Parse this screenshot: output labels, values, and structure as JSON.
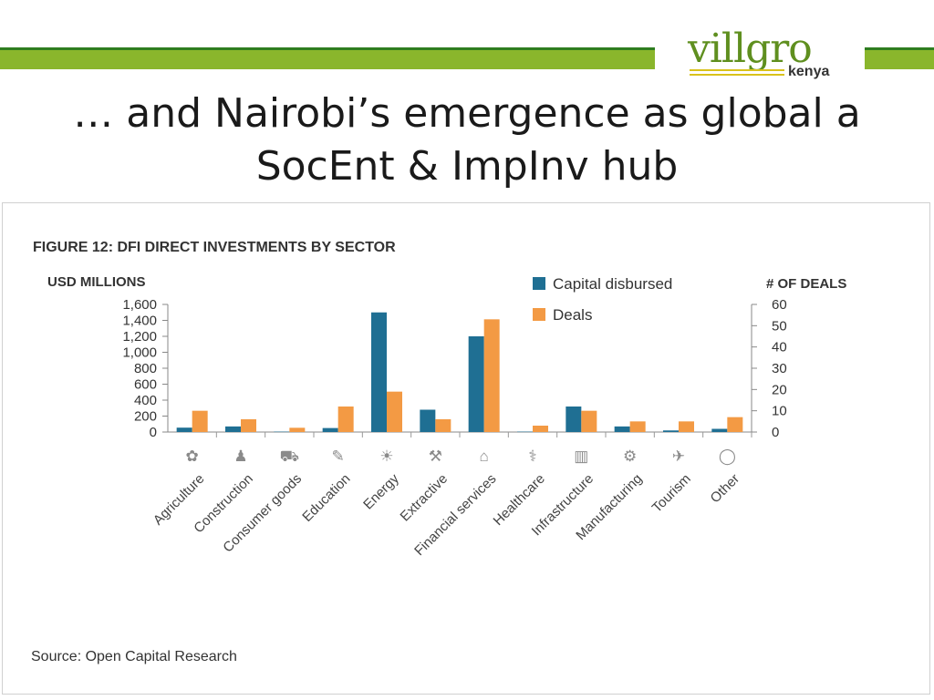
{
  "slide": {
    "title_line1": "… and Nairobi’s emergence as global a",
    "title_line2": "SocEnt & ImpInv hub"
  },
  "logo": {
    "main": "villgro",
    "sub": "kenya"
  },
  "colors": {
    "band": "#8ab62c",
    "capital": "#1f6f93",
    "deals": "#f39a44"
  },
  "source": "Source: Open Capital Research",
  "chart_data": {
    "type": "bar",
    "title": "FIGURE 12: DFI DIRECT INVESTMENTS BY SECTOR",
    "ylabel": "USD MILLIONS",
    "y2label": "# OF DEALS",
    "ylim": [
      0,
      1600
    ],
    "y2lim": [
      0,
      60
    ],
    "yticks": [
      "0",
      "200",
      "400",
      "600",
      "800",
      "1,000",
      "1,200",
      "1,400",
      "1,600"
    ],
    "y2ticks": [
      "0",
      "10",
      "20",
      "30",
      "40",
      "50",
      "60"
    ],
    "categories": [
      "Agriculture",
      "Construction",
      "Consumer goods",
      "Education",
      "Energy",
      "Extractive",
      "Financial services",
      "Healthcare",
      "Infrastructure",
      "Manufacturing",
      "Tourism",
      "Other"
    ],
    "icons": [
      "agriculture-icon",
      "construction-icon",
      "consumer-goods-icon",
      "education-icon",
      "energy-icon",
      "extractive-icon",
      "financial-services-icon",
      "healthcare-icon",
      "infrastructure-icon",
      "manufacturing-icon",
      "tourism-icon",
      "other-icon"
    ],
    "series": [
      {
        "name": "Capital disbursed",
        "axis": "left",
        "color": "#1f6f93",
        "values": [
          55,
          70,
          5,
          50,
          1500,
          280,
          1200,
          5,
          320,
          70,
          20,
          40
        ]
      },
      {
        "name": "Deals",
        "axis": "right",
        "color": "#f39a44",
        "values": [
          10,
          6,
          2,
          12,
          19,
          6,
          53,
          3,
          10,
          5,
          5,
          7
        ]
      }
    ],
    "legend_position": "top-right",
    "grid": false
  }
}
